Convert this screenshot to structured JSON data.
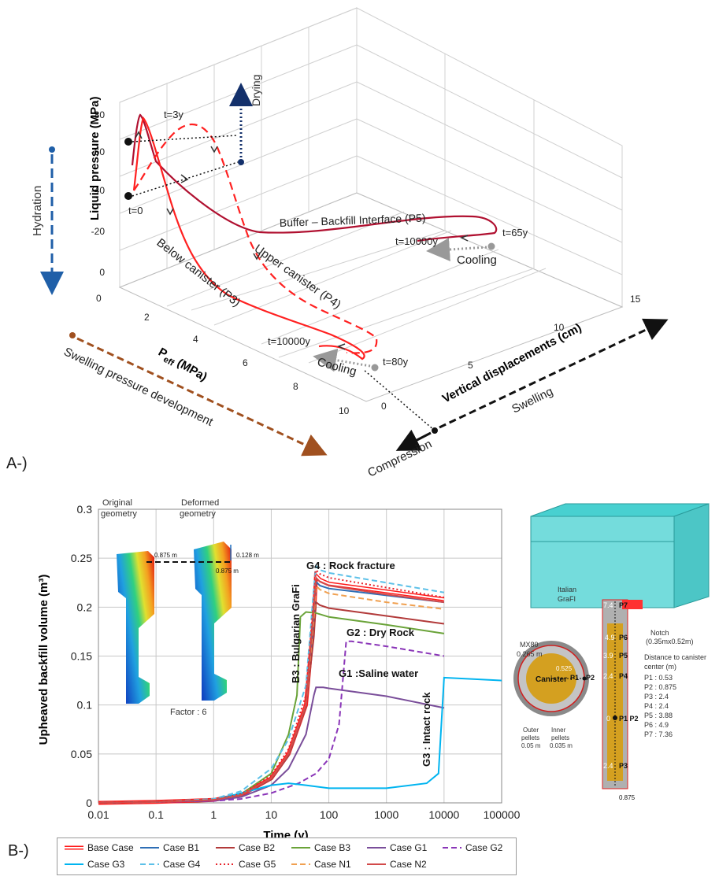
{
  "panel_a": {
    "label": "A-)",
    "z_axis_title": "Liquid pressure (MPa)",
    "z_ticks": [
      "-80",
      "-60",
      "-40",
      "-20",
      "0"
    ],
    "peff_axis_title": "P",
    "peff_axis_sub": "eff",
    "peff_axis_unit": " (MPa)",
    "peff_ticks": [
      "0",
      "2",
      "4",
      "6",
      "8",
      "10"
    ],
    "vd_axis_title": "Vertical displacements (cm)",
    "vd_ticks": [
      "0",
      "5",
      "10",
      "15"
    ],
    "hydration": "Hydration",
    "drying": "Drying",
    "swelling_pressure": "Swelling pressure development",
    "swelling": "Swelling",
    "compression": "Compression",
    "p5_label": "Buffer – Backfill Interface (P5)",
    "p4_label": "Upper canister (P4)",
    "p3_label": "Below canister (P3)",
    "t0": "t=0",
    "t3": "t=3y",
    "t65": "t=65y",
    "t80": "t=80y",
    "t10000_a": "t=10000y",
    "t10000_b": "t=10000y",
    "cooling_a": "Cooling",
    "cooling_b": "Cooling"
  },
  "panel_b": {
    "label": "B-)",
    "inset_left": {
      "original_1": "Original",
      "original_2": "geometry",
      "deformed_1": "Deformed",
      "deformed_2": "geometry",
      "dim_875_a": "0.875 m",
      "dim_875_b": "0.875 m",
      "dim_128": "0.128 m",
      "factor": "Factor : 6"
    },
    "annotations": {
      "g4": "G4 : Rock fracture",
      "b3": "B3 : Bulgarian GraFi",
      "g2": "G2 : Dry Rock",
      "g1": "G1 :Saline water",
      "g3": "G3 : Intact rock"
    },
    "schematic": {
      "italian_1": "Italian",
      "italian_2": "GraFI",
      "mx80_1": "MX80",
      "mx80_2": "0.265 m",
      "dim_0525": "0.525",
      "canister": "Canister",
      "p1": "P1",
      "p2": "P2",
      "outer_1": "Outer",
      "outer_2": "pellets",
      "outer_3": "0.05 m",
      "inner_1": "Inner",
      "inner_2": "pellets",
      "inner_3": "0.035 m",
      "notch_1": "Notch",
      "notch_2": "(0.35mx0.52m)",
      "dist_1": "Distance to canister",
      "dist_2": "center (m)",
      "p_list": [
        "P1 : 0.53",
        "P2 : 0.875",
        "P3 : 2.4",
        "P4 : 2.4",
        "P5 : 3.88",
        "P6 : 4.9",
        "P7 : 7.36"
      ],
      "v74": "7.4",
      "v49": "4.9",
      "v39": "3.9",
      "v24a": "2.4",
      "v0": "0",
      "v24b": "2.4",
      "lp7": "P7",
      "lp6": "P6",
      "lp5": "P5",
      "lp4": "P4",
      "lp12": "P1 P2",
      "lp3": "P3",
      "bottom_dim": "0.875"
    }
  },
  "chart_data": [
    {
      "type": "line",
      "title": "",
      "xlabel": "Time (y)",
      "ylabel": "Upheaved backfill volume (m³)",
      "xscale": "log",
      "xlim": [
        0.01,
        100000
      ],
      "ylim": [
        0,
        0.3
      ],
      "x_ticks": [
        "0.01",
        "0.1",
        "1",
        "10",
        "100",
        "1000",
        "10000",
        "100000"
      ],
      "y_ticks": [
        "0",
        "0.05",
        "0.1",
        "0.15",
        "0.2",
        "0.25",
        "0.3"
      ],
      "grid": true,
      "legend_position": "bottom",
      "series": [
        {
          "name": "Base Case",
          "color": "#ff1a1a",
          "dash": "solid",
          "outline": true,
          "x": [
            0.01,
            0.1,
            1,
            3,
            10,
            20,
            40,
            55,
            60,
            70,
            100,
            1000,
            10000
          ],
          "y": [
            0,
            0.001,
            0.003,
            0.008,
            0.025,
            0.05,
            0.1,
            0.19,
            0.232,
            0.228,
            0.224,
            0.216,
            0.208
          ]
        },
        {
          "name": "Case B1",
          "color": "#2e6eb5",
          "dash": "solid",
          "x": [
            0.01,
            0.1,
            1,
            3,
            10,
            20,
            40,
            55,
            60,
            70,
            100,
            1000,
            10000
          ],
          "y": [
            0,
            0.001,
            0.003,
            0.008,
            0.024,
            0.048,
            0.098,
            0.19,
            0.226,
            0.222,
            0.219,
            0.212,
            0.205
          ]
        },
        {
          "name": "Case B2",
          "color": "#b23a3a",
          "dash": "solid",
          "x": [
            0.01,
            0.1,
            1,
            3,
            10,
            20,
            40,
            55,
            60,
            70,
            100,
            1000,
            10000
          ],
          "y": [
            0,
            0.001,
            0.003,
            0.008,
            0.024,
            0.048,
            0.098,
            0.17,
            0.205,
            0.202,
            0.199,
            0.191,
            0.183
          ]
        },
        {
          "name": "Case B3",
          "color": "#6aa339",
          "dash": "solid",
          "x": [
            0.01,
            0.1,
            1,
            3,
            10,
            20,
            28,
            32,
            40,
            60,
            100,
            1000,
            10000
          ],
          "y": [
            0,
            0.001,
            0.003,
            0.009,
            0.03,
            0.07,
            0.11,
            0.19,
            0.195,
            0.194,
            0.19,
            0.182,
            0.173
          ]
        },
        {
          "name": "Case G1",
          "color": "#7a4e9a",
          "dash": "solid",
          "x": [
            0.01,
            0.1,
            1,
            3,
            10,
            20,
            40,
            55,
            60,
            80,
            100,
            1000,
            10000
          ],
          "y": [
            0,
            0.001,
            0.002,
            0.006,
            0.018,
            0.035,
            0.07,
            0.11,
            0.118,
            0.118,
            0.117,
            0.109,
            0.097
          ]
        },
        {
          "name": "Case G2",
          "color": "#8a35b8",
          "dash": "dashed",
          "x": [
            0.01,
            0.1,
            1,
            3,
            10,
            30,
            60,
            100,
            150,
            200,
            250,
            1000,
            10000
          ],
          "y": [
            0,
            0.001,
            0.002,
            0.004,
            0.01,
            0.02,
            0.03,
            0.045,
            0.08,
            0.165,
            0.165,
            0.16,
            0.15
          ]
        },
        {
          "name": "Case G3",
          "color": "#00b4f0",
          "dash": "solid",
          "x": [
            0.01,
            0.1,
            1,
            3,
            10,
            20,
            40,
            100,
            1000,
            5000,
            8000,
            10000,
            100000
          ],
          "y": [
            0,
            0.001,
            0.003,
            0.01,
            0.018,
            0.02,
            0.018,
            0.015,
            0.015,
            0.02,
            0.03,
            0.128,
            0.125
          ]
        },
        {
          "name": "Case G4",
          "color": "#5cc0e8",
          "dash": "dashed",
          "x": [
            0.01,
            0.1,
            1,
            3,
            10,
            20,
            40,
            55,
            60,
            70,
            100,
            1000,
            10000
          ],
          "y": [
            0,
            0.001,
            0.004,
            0.012,
            0.035,
            0.065,
            0.12,
            0.22,
            0.242,
            0.238,
            0.235,
            0.225,
            0.215
          ]
        },
        {
          "name": "Case G5",
          "color": "#e8232b",
          "dash": "dotted",
          "x": [
            0.01,
            0.1,
            1,
            3,
            10,
            20,
            40,
            55,
            60,
            70,
            100,
            1000,
            10000
          ],
          "y": [
            0,
            0.001,
            0.003,
            0.009,
            0.028,
            0.055,
            0.11,
            0.21,
            0.238,
            0.234,
            0.23,
            0.22,
            0.21
          ]
        },
        {
          "name": "Case N1",
          "color": "#f0a050",
          "dash": "dashed",
          "x": [
            0.01,
            0.1,
            1,
            3,
            10,
            20,
            40,
            55,
            60,
            70,
            100,
            1000,
            10000
          ],
          "y": [
            0,
            0.001,
            0.003,
            0.008,
            0.025,
            0.05,
            0.1,
            0.19,
            0.222,
            0.218,
            0.214,
            0.205,
            0.198
          ]
        },
        {
          "name": "Case N2",
          "color": "#d24a4a",
          "dash": "solid",
          "x": [
            0.01,
            0.1,
            1,
            3,
            10,
            20,
            40,
            55,
            60,
            70,
            100,
            1000,
            10000
          ],
          "y": [
            0,
            0.001,
            0.003,
            0.008,
            0.025,
            0.05,
            0.1,
            0.2,
            0.23,
            0.226,
            0.222,
            0.213,
            0.205
          ]
        }
      ]
    },
    {
      "type": "line",
      "title": "",
      "xlabel": "Vertical displacements (cm)",
      "ylabel": "Liquid pressure (MPa)",
      "zlabel": "Peff (MPa)",
      "projection": "3d",
      "series": [
        {
          "name": "Buffer – Backfill Interface (P5)",
          "color": "#b01030",
          "dash": "solid"
        },
        {
          "name": "Upper canister (P4)",
          "color": "#ff2020",
          "dash": "dashed"
        },
        {
          "name": "Below canister (P3)",
          "color": "#ff2020",
          "dash": "solid"
        }
      ]
    }
  ]
}
